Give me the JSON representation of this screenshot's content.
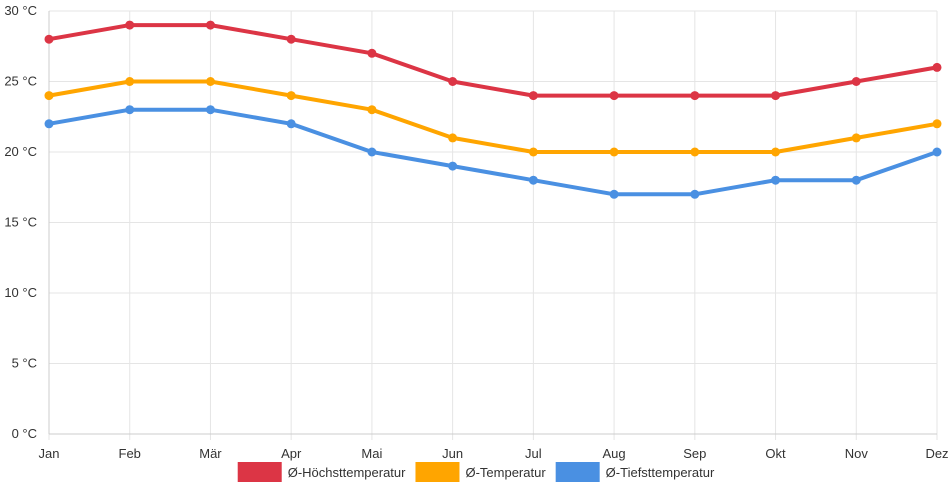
{
  "chart_data": {
    "type": "line",
    "title": "",
    "xlabel": "",
    "ylabel": "",
    "categories": [
      "Jan",
      "Feb",
      "Mär",
      "Apr",
      "Mai",
      "Jun",
      "Jul",
      "Aug",
      "Sep",
      "Okt",
      "Nov",
      "Dez"
    ],
    "ylim": [
      0,
      30
    ],
    "y_ticks": [
      0,
      5,
      10,
      15,
      20,
      25,
      30
    ],
    "y_tick_labels": [
      "0 °C",
      "5 °C",
      "10 °C",
      "15 °C",
      "20 °C",
      "25 °C",
      "30 °C"
    ],
    "grid": true,
    "legend_position": "bottom-center",
    "series": [
      {
        "name": "Ø-Höchsttemperatur",
        "color": "#dc3545",
        "values": [
          28,
          29,
          29,
          28,
          27,
          25,
          24,
          24,
          24,
          24,
          25,
          26
        ]
      },
      {
        "name": "Ø-Temperatur",
        "color": "#ffa500",
        "values": [
          24,
          25,
          25,
          24,
          23,
          21,
          20,
          20,
          20,
          20,
          21,
          22
        ]
      },
      {
        "name": "Ø-Tiefsttemperatur",
        "color": "#4a90e2",
        "values": [
          22,
          23,
          23,
          22,
          20,
          19,
          18,
          17,
          17,
          18,
          18,
          20
        ]
      }
    ]
  },
  "colors": {
    "grid": "#e5e5e5",
    "axis": "#cccccc",
    "text": "#333333"
  }
}
